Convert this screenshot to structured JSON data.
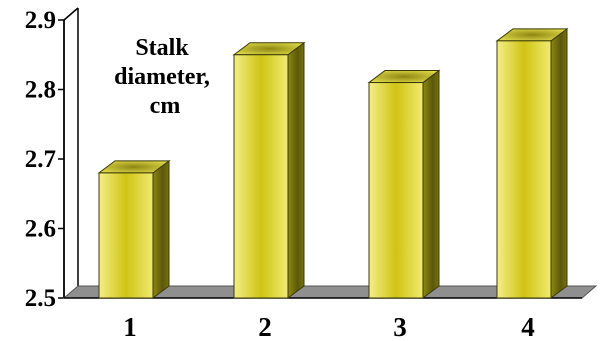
{
  "chart_data": {
    "type": "bar",
    "title": "Stalk diameter, cm",
    "title_lines": [
      "Stalk",
      "diameter,",
      "cm"
    ],
    "categories": [
      "1",
      "2",
      "3",
      "4"
    ],
    "values": [
      2.68,
      2.85,
      2.81,
      2.87
    ],
    "ylim": [
      2.5,
      2.9
    ],
    "yticks": [
      "2.5",
      "2.6",
      "2.7",
      "2.8",
      "2.9"
    ],
    "grid": false,
    "legend": "none",
    "style": "3d",
    "colors": {
      "bar_front_edge": "#f1ea72",
      "bar_front_center": "#ccc210",
      "bar_side": "#6e6a0e",
      "bar_top": "#cfc928",
      "floor": "#8f8f8f",
      "axis": "#000000"
    }
  }
}
